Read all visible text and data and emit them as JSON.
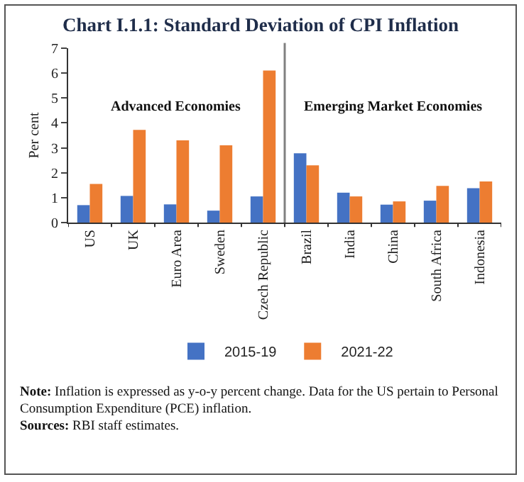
{
  "chart_data": {
    "type": "bar",
    "title": "Chart I.1.1: Standard Deviation of CPI Inflation",
    "ylabel": "Per cent",
    "categories": [
      "US",
      "UK",
      "Euro Area",
      "Sweden",
      "Czech Republic",
      "Brazil",
      "India",
      "China",
      "South Africa",
      "Indonesia"
    ],
    "series": [
      {
        "name": "2015-19",
        "color": "#4472c4",
        "values": [
          0.7,
          1.07,
          0.73,
          0.48,
          1.05,
          2.78,
          1.2,
          0.72,
          0.88,
          1.38
        ]
      },
      {
        "name": "2021-22",
        "color": "#ed7d31",
        "values": [
          1.55,
          3.72,
          3.3,
          3.1,
          6.1,
          2.3,
          1.05,
          0.85,
          1.47,
          1.65
        ]
      }
    ],
    "ylim": [
      0,
      7
    ],
    "yticks": [
      0,
      1,
      2,
      3,
      4,
      5,
      6,
      7
    ],
    "grid": false,
    "legend": "bottom",
    "annotations": [
      "Advanced Economies",
      "Emerging Market Economies",
      "Note: Inflation is expressed as y-o-y percent change. Data for the US pertain to Personal Consumption Expenditure (PCE) inflation.",
      "Sources: RBI staff estimates."
    ]
  }
}
